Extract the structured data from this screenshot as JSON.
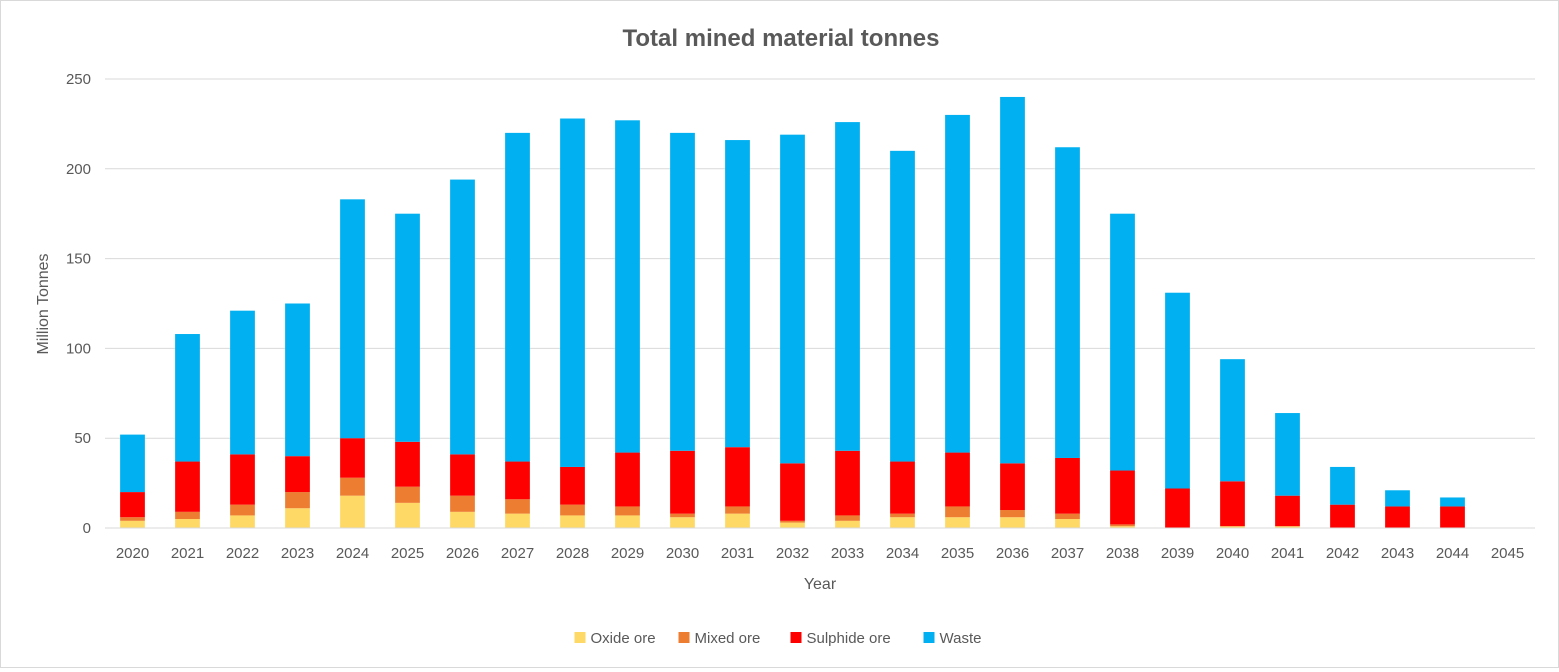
{
  "chart_data": {
    "type": "bar",
    "stacked": true,
    "title": "Total mined material tonnes",
    "xlabel": "Year",
    "ylabel": "Million Tonnes",
    "ylim": [
      0,
      250
    ],
    "yticks": [
      0,
      50,
      100,
      150,
      200,
      250
    ],
    "grid": true,
    "legend_position": "bottom",
    "categories": [
      "2020",
      "2021",
      "2022",
      "2023",
      "2024",
      "2025",
      "2026",
      "2027",
      "2028",
      "2029",
      "2030",
      "2031",
      "2032",
      "2033",
      "2034",
      "2035",
      "2036",
      "2037",
      "2038",
      "2039",
      "2040",
      "2041",
      "2042",
      "2043",
      "2044",
      "2045"
    ],
    "series": [
      {
        "name": "Oxide ore",
        "color": "#ffd966",
        "values": [
          4,
          5,
          7,
          11,
          18,
          14,
          9,
          8,
          7,
          7,
          6,
          8,
          3,
          4,
          6,
          6,
          6,
          5,
          1,
          0,
          1,
          1,
          0,
          0,
          0,
          0
        ]
      },
      {
        "name": "Mixed ore",
        "color": "#ed7d31",
        "values": [
          2,
          4,
          6,
          9,
          10,
          9,
          9,
          8,
          6,
          5,
          2,
          4,
          1,
          3,
          2,
          6,
          4,
          3,
          1,
          0,
          0,
          0,
          0,
          0,
          0,
          0
        ]
      },
      {
        "name": "Sulphide ore",
        "color": "#ff0000",
        "values": [
          14,
          28,
          28,
          20,
          22,
          25,
          23,
          21,
          21,
          30,
          35,
          33,
          32,
          36,
          29,
          30,
          26,
          31,
          30,
          22,
          25,
          17,
          13,
          12,
          12,
          0
        ]
      },
      {
        "name": "Waste",
        "color": "#00b0f0",
        "values": [
          32,
          71,
          80,
          85,
          133,
          127,
          153,
          183,
          194,
          185,
          177,
          171,
          183,
          183,
          173,
          188,
          204,
          173,
          143,
          109,
          68,
          46,
          21,
          9,
          5,
          0
        ]
      }
    ]
  }
}
